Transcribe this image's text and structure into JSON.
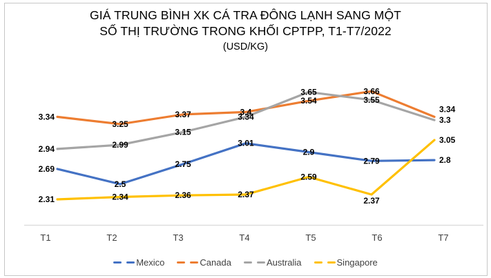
{
  "window": {
    "background": "#ffffff",
    "border_color": "#c6c6c6"
  },
  "title": {
    "line1": "GIÁ TRUNG BÌNH XK CÁ TRA ĐÔNG LẠNH SANG MỘT",
    "line2": "SỐ THỊ TRƯỜNG TRONG KHỐI CPTPP, T1-T7/2022",
    "line3": "(USD/KG)"
  },
  "chart_data": {
    "type": "line",
    "title": "GIÁ TRUNG BÌNH XK CÁ TRA ĐÔNG LẠNH SANG MỘT SỐ THỊ TRƯỜNG TRONG KHỐI CPTPP, T1-T7/2022 (USD/KG)",
    "xlabel": "",
    "ylabel": "USD/KG",
    "categories": [
      "T1",
      "T2",
      "T3",
      "T4",
      "T5",
      "T6",
      "T7"
    ],
    "series": [
      {
        "name": "Mexico",
        "color": "#4472C4",
        "values": [
          2.69,
          2.5,
          2.75,
          3.01,
          2.9,
          2.79,
          2.8
        ],
        "label_placement": [
          "left",
          "center",
          "center",
          "center",
          "center",
          "center",
          "right"
        ]
      },
      {
        "name": "Canada",
        "color": "#ED7D31",
        "values": [
          3.34,
          3.25,
          3.37,
          3.4,
          3.54,
          3.66,
          3.34
        ],
        "label_placement": [
          "left",
          "center",
          "center",
          "center",
          "center",
          "center",
          "right-up"
        ]
      },
      {
        "name": "Australia",
        "color": "#A5A5A5",
        "values": [
          2.94,
          2.99,
          3.15,
          3.34,
          3.65,
          3.55,
          3.3
        ],
        "label_placement": [
          "left",
          "center",
          "center",
          "center",
          "center",
          "center",
          "right"
        ]
      },
      {
        "name": "Singapore",
        "color": "#FFC000",
        "values": [
          2.31,
          2.34,
          2.36,
          2.37,
          2.59,
          2.37,
          3.05
        ],
        "label_placement": [
          "left",
          "center",
          "center",
          "center",
          "center",
          "below",
          "right"
        ]
      }
    ],
    "ylim": [
      2.0,
      3.8
    ],
    "grid": false,
    "data_labels": true,
    "legend_position": "bottom",
    "axis_line_color": "#d9d9d9",
    "data_label_color": "#000000",
    "tick_label_color": "#3d3d3d"
  },
  "legend": {
    "items": [
      "Mexico",
      "Canada",
      "Australia",
      "Singapore"
    ]
  }
}
